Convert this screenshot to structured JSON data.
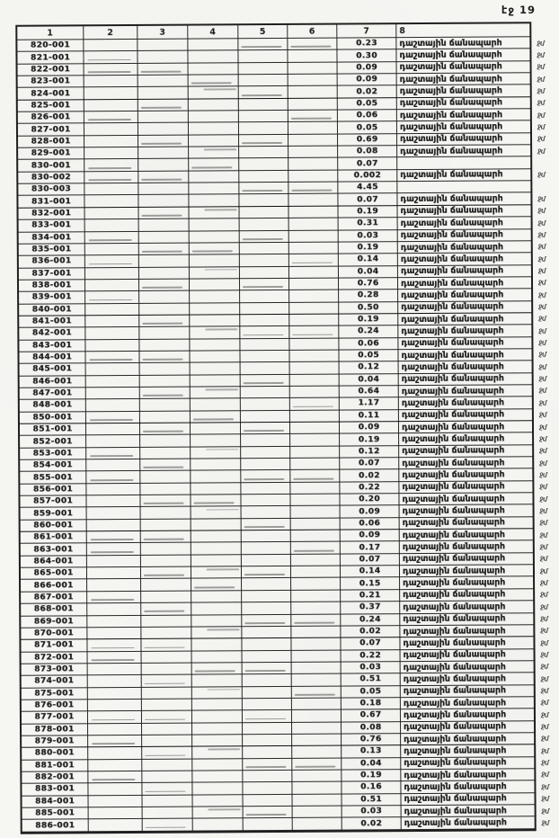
{
  "page": {
    "label": "էջ 19"
  },
  "table": {
    "headers": [
      "1",
      "2",
      "3",
      "4",
      "5",
      "6",
      "7",
      "8"
    ],
    "road_label": "դաշտային ճանապարհ",
    "margin_note": "ջմ",
    "rows": [
      {
        "id": "820-001",
        "value": "0.23",
        "label": "դաշտային ճանապարհ",
        "note": "ջմ"
      },
      {
        "id": "821-001",
        "value": "0.30",
        "label": "դաշտային ճանապարհ",
        "note": "ջմ"
      },
      {
        "id": "822-001",
        "value": "0.09",
        "label": "դաշտային ճանապարհ",
        "note": "ջմ"
      },
      {
        "id": "823-001",
        "value": "0.09",
        "label": "դաշտային ճանապարհ",
        "note": "ջմ"
      },
      {
        "id": "824-001",
        "value": "0.02",
        "label": "դաշտային ճանապարհ",
        "note": "ջմ"
      },
      {
        "id": "825-001",
        "value": "0.05",
        "label": "դաշտային ճանապարհ",
        "note": "ջմ"
      },
      {
        "id": "826-001",
        "value": "0.06",
        "label": "դաշտային ճանապարհ",
        "note": "ջմ"
      },
      {
        "id": "827-001",
        "value": "0.05",
        "label": "դաշտային ճանապարհ",
        "note": "ջմ"
      },
      {
        "id": "828-001",
        "value": "0.69",
        "label": "դաշտային ճանապարհ",
        "note": "ջմ"
      },
      {
        "id": "829-001",
        "value": "0.08",
        "label": "դաշտային ճանապարհ",
        "note": "ջմ"
      },
      {
        "id": "830-001",
        "value": "0.07",
        "label": "",
        "note": ""
      },
      {
        "id": "830-002",
        "value": "0.002",
        "label": "դաշտային ճանապարհ",
        "note": "ջմ"
      },
      {
        "id": "830-003",
        "value": "4.45",
        "label": "",
        "note": ""
      },
      {
        "id": "831-001",
        "value": "0.07",
        "label": "դաշտային ճանապարհ",
        "note": "ջմ"
      },
      {
        "id": "832-001",
        "value": "0.19",
        "label": "դաշտային ճանապարհ",
        "note": "ջմ"
      },
      {
        "id": "833-001",
        "value": "0.31",
        "label": "դաշտային ճանապարհ",
        "note": "ջմ"
      },
      {
        "id": "834-001",
        "value": "0.03",
        "label": "դաշտային ճանապարհ",
        "note": "ջմ"
      },
      {
        "id": "835-001",
        "value": "0.19",
        "label": "դաշտային ճանապարհ",
        "note": "ջմ"
      },
      {
        "id": "836-001",
        "value": "0.14",
        "label": "դաշտային ճանապարհ",
        "note": "ջմ"
      },
      {
        "id": "837-001",
        "value": "0.04",
        "label": "դաշտային ճանապարհ",
        "note": "ջմ"
      },
      {
        "id": "838-001",
        "value": "0.76",
        "label": "դաշտային ճանապարհ",
        "note": "ջմ"
      },
      {
        "id": "839-001",
        "value": "0.28",
        "label": "դաշտային ճանապարհ",
        "note": "ջմ"
      },
      {
        "id": "840-001",
        "value": "0.50",
        "label": "դաշտային ճանապարհ",
        "note": "ջմ"
      },
      {
        "id": "841-001",
        "value": "0.19",
        "label": "դաշտային ճանապարհ",
        "note": "ջմ"
      },
      {
        "id": "842-001",
        "value": "0.24",
        "label": "դաշտային ճանապարհ",
        "note": "ջմ"
      },
      {
        "id": "843-001",
        "value": "0.06",
        "label": "դաշտային ճանապարհ",
        "note": "ջմ"
      },
      {
        "id": "844-001",
        "value": "0.05",
        "label": "դաշտային ճանապարհ",
        "note": "ջմ"
      },
      {
        "id": "845-001",
        "value": "0.12",
        "label": "դաշտային ճանապարհ",
        "note": "ջմ"
      },
      {
        "id": "846-001",
        "value": "0.04",
        "label": "դաշտային ճանապարհ",
        "note": "ջմ"
      },
      {
        "id": "847-001",
        "value": "0.64",
        "label": "դաշտային ճանապարհ",
        "note": "ջմ"
      },
      {
        "id": "848-001",
        "value": "1.17",
        "label": "դաշտային ճանապարհ",
        "note": "ջմ"
      },
      {
        "id": "850-001",
        "value": "0.11",
        "label": "դաշտային ճանապարհ",
        "note": "ջմ"
      },
      {
        "id": "851-001",
        "value": "0.09",
        "label": "դաշտային ճանապարհ",
        "note": "ջմ"
      },
      {
        "id": "852-001",
        "value": "0.19",
        "label": "դաշտային ճանապարհ",
        "note": "ջմ"
      },
      {
        "id": "853-001",
        "value": "0.12",
        "label": "դաշտային ճանապարհ",
        "note": "ջմ"
      },
      {
        "id": "854-001",
        "value": "0.07",
        "label": "դաշտային ճանապարհ",
        "note": "ջմ"
      },
      {
        "id": "855-001",
        "value": "0.02",
        "label": "դաշտային ճանապարհ",
        "note": "ջմ"
      },
      {
        "id": "856-001",
        "value": "0.22",
        "label": "դաշտային ճանապարհ",
        "note": "ջմ"
      },
      {
        "id": "857-001",
        "value": "0.20",
        "label": "դաշտային ճանապարհ",
        "note": "ջմ"
      },
      {
        "id": "859-001",
        "value": "0.09",
        "label": "դաշտային ճանապարհ",
        "note": "ջմ"
      },
      {
        "id": "860-001",
        "value": "0.06",
        "label": "դաշտային ճանապարհ",
        "note": "ջմ"
      },
      {
        "id": "861-001",
        "value": "0.09",
        "label": "դաշտային ճանապարհ",
        "note": "ջմ"
      },
      {
        "id": "863-001",
        "value": "0.17",
        "label": "դաշտային ճանապարհ",
        "note": "ջմ"
      },
      {
        "id": "864-001",
        "value": "0.07",
        "label": "դաշտային ճանապարհ",
        "note": "ջմ"
      },
      {
        "id": "865-001",
        "value": "0.14",
        "label": "դաշտային ճանապարհ",
        "note": "ջմ"
      },
      {
        "id": "866-001",
        "value": "0.15",
        "label": "դաշտային ճանապարհ",
        "note": "ջմ"
      },
      {
        "id": "867-001",
        "value": "0.21",
        "label": "դաշտային ճանապարհ",
        "note": "ջմ"
      },
      {
        "id": "868-001",
        "value": "0.37",
        "label": "դաշտային ճանապարհ",
        "note": "ջմ"
      },
      {
        "id": "869-001",
        "value": "0.24",
        "label": "դաշտային ճանապարհ",
        "note": "ջմ"
      },
      {
        "id": "870-001",
        "value": "0.02",
        "label": "դաշտային ճանապարհ",
        "note": "ջմ"
      },
      {
        "id": "871-001",
        "value": "0.07",
        "label": "դաշտային ճանապարհ",
        "note": "ջմ"
      },
      {
        "id": "872-001",
        "value": "0.22",
        "label": "դաշտային ճանապարհ",
        "note": "ջմ"
      },
      {
        "id": "873-001",
        "value": "0.03",
        "label": "դաշտային ճանապարհ",
        "note": "ջմ"
      },
      {
        "id": "874-001",
        "value": "0.51",
        "label": "դաշտային ճանապարհ",
        "note": "ջմ"
      },
      {
        "id": "875-001",
        "value": "0.05",
        "label": "դաշտային ճանապարհ",
        "note": "ջմ"
      },
      {
        "id": "876-001",
        "value": "0.18",
        "label": "դաշտային ճանապարհ",
        "note": "ջմ"
      },
      {
        "id": "877-001",
        "value": "0.67",
        "label": "դաշտային ճանապարհ",
        "note": "ջմ"
      },
      {
        "id": "878-001",
        "value": "0.08",
        "label": "դաշտային ճանապարհ",
        "note": "ջմ"
      },
      {
        "id": "879-001",
        "value": "0.76",
        "label": "դաշտային ճանապարհ",
        "note": "ջմ"
      },
      {
        "id": "880-001",
        "value": "0.13",
        "label": "դաշտային ճանապարհ",
        "note": "ջմ"
      },
      {
        "id": "881-001",
        "value": "0.04",
        "label": "դաշտային ճանապարհ",
        "note": "ջմ"
      },
      {
        "id": "882-001",
        "value": "0.19",
        "label": "դաշտային ճանապարհ",
        "note": "ջմ"
      },
      {
        "id": "883-001",
        "value": "0.16",
        "label": "դաշտային ճանապարհ",
        "note": "ջմ"
      },
      {
        "id": "884-001",
        "value": "0.51",
        "label": "դաշտային ճանապարհ",
        "note": "ջմ"
      },
      {
        "id": "885-001",
        "value": "0.03",
        "label": "դաշտային ճանապարհ",
        "note": "ջմ"
      },
      {
        "id": "886-001",
        "value": "0.02",
        "label": "դաշտային ճանապարհ",
        "note": "ջմ"
      }
    ]
  }
}
